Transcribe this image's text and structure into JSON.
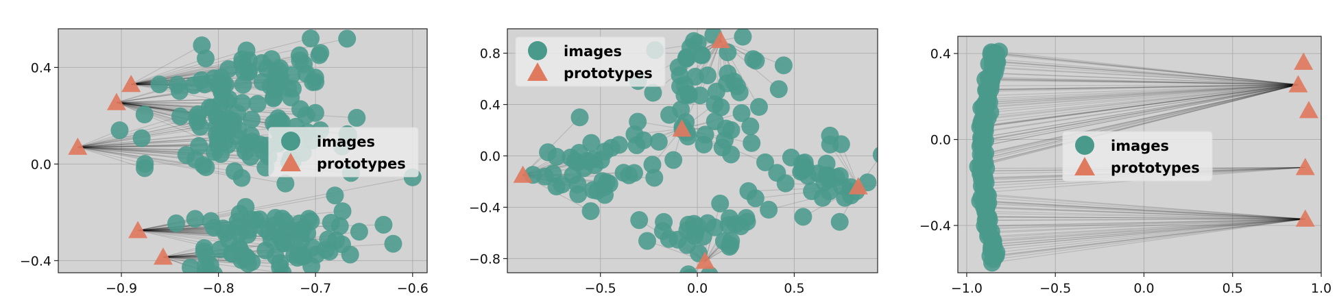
{
  "colors": {
    "background": "#d3d3d3",
    "grid": "#b0b0b0",
    "images": "#4a9a8c",
    "prototypes": "#e07a5f",
    "edges": "#000000"
  },
  "legend": {
    "images_label": "images",
    "prototypes_label": "prototypes"
  },
  "chart_data": [
    {
      "type": "scatter",
      "title": "",
      "xlabel": "",
      "ylabel": "",
      "xlim": [
        -0.965,
        -0.585
      ],
      "ylim": [
        -0.45,
        0.56
      ],
      "xticks": [
        -0.9,
        -0.8,
        -0.7,
        -0.6
      ],
      "xtick_labels": [
        "−0.9",
        "−0.8",
        "−0.7",
        "−0.6"
      ],
      "yticks": [
        -0.4,
        0.0,
        0.4
      ],
      "ytick_labels": [
        "−0.4",
        "0.0",
        "0.4"
      ],
      "grid": true,
      "legend_position": "center-right",
      "seed": 11,
      "prototypes": [
        [
          -0.89,
          0.33
        ],
        [
          -0.905,
          0.255
        ],
        [
          -0.945,
          0.07
        ],
        [
          -0.883,
          -0.275
        ],
        [
          -0.857,
          -0.385
        ]
      ],
      "clusters": [
        {
          "center": [
            -0.76,
            0.38
          ],
          "spread": [
            0.04,
            0.07
          ],
          "n": 45,
          "proto": 0
        },
        {
          "center": [
            -0.765,
            0.2
          ],
          "spread": [
            0.045,
            0.08
          ],
          "n": 45,
          "proto": 1
        },
        {
          "center": [
            -0.775,
            0.06
          ],
          "spread": [
            0.045,
            0.09
          ],
          "n": 45,
          "proto": 2
        },
        {
          "center": [
            -0.745,
            -0.27
          ],
          "spread": [
            0.055,
            0.05
          ],
          "n": 45,
          "proto": 3
        },
        {
          "center": [
            -0.75,
            -0.37
          ],
          "spread": [
            0.05,
            0.035
          ],
          "n": 35,
          "proto": 4
        }
      ],
      "extra_points": [
        [
          -0.705,
          0.52
        ],
        [
          -0.695,
          0.46
        ],
        [
          -0.7,
          0.34
        ],
        [
          -0.695,
          0.14
        ],
        [
          -0.68,
          -0.13
        ],
        [
          -0.62,
          -0.33
        ],
        [
          -0.6,
          -0.055
        ],
        [
          -0.655,
          -0.28
        ]
      ],
      "series": [
        {
          "name": "images"
        },
        {
          "name": "prototypes"
        }
      ]
    },
    {
      "type": "scatter",
      "title": "",
      "xlabel": "",
      "ylabel": "",
      "xlim": [
        -0.98,
        0.93
      ],
      "ylim": [
        -0.91,
        0.99
      ],
      "xticks": [
        -0.5,
        0.0,
        0.5
      ],
      "xtick_labels": [
        "−0.5",
        "0.0",
        "0.5"
      ],
      "yticks": [
        -0.8,
        -0.4,
        0.0,
        0.4,
        0.8
      ],
      "ytick_labels": [
        "−0.8",
        "−0.4",
        "0.0",
        "0.4",
        "0.8"
      ],
      "grid": true,
      "legend_position": "upper-left",
      "seed": 23,
      "prototypes": [
        [
          0.12,
          0.9
        ],
        [
          -0.08,
          0.21
        ],
        [
          -0.9,
          -0.15
        ],
        [
          0.83,
          -0.24
        ],
        [
          0.04,
          -0.82
        ]
      ],
      "clusters": [
        {
          "center": [
            0.1,
            0.62
          ],
          "spread": [
            0.15,
            0.14
          ],
          "n": 35,
          "proto": 0
        },
        {
          "center": [
            -0.1,
            0.18
          ],
          "spread": [
            0.18,
            0.12
          ],
          "n": 25,
          "proto": 1
        },
        {
          "center": [
            -0.6,
            -0.1
          ],
          "spread": [
            0.15,
            0.13
          ],
          "n": 35,
          "proto": 2
        },
        {
          "center": [
            0.6,
            -0.2
          ],
          "spread": [
            0.16,
            0.14
          ],
          "n": 35,
          "proto": 3
        },
        {
          "center": [
            0.05,
            -0.6
          ],
          "spread": [
            0.15,
            0.13
          ],
          "n": 30,
          "proto": 4
        }
      ],
      "extra_points": [
        [
          0.42,
          0.52
        ],
        [
          0.28,
          0.1
        ],
        [
          0.35,
          -0.05
        ],
        [
          -0.55,
          -0.43
        ],
        [
          -0.3,
          -0.5
        ],
        [
          0.3,
          -0.33
        ]
      ],
      "series": [
        {
          "name": "images"
        },
        {
          "name": "prototypes"
        }
      ]
    },
    {
      "type": "scatter",
      "title": "",
      "xlabel": "",
      "ylabel": "",
      "xlim": [
        -1.05,
        1.0
      ],
      "ylim": [
        -0.62,
        0.48
      ],
      "xticks": [
        -1.0,
        -0.5,
        0.0,
        0.5,
        1.0
      ],
      "xtick_labels": [
        "−1.0",
        "−0.5",
        "0.0",
        "0.5",
        "1.0"
      ],
      "yticks": [
        -0.4,
        0.0,
        0.4
      ],
      "ytick_labels": [
        "−0.4",
        "0.0",
        "0.4"
      ],
      "grid": true,
      "legend_position": "center",
      "seed": 37,
      "prototypes": [
        [
          0.9,
          0.36
        ],
        [
          0.87,
          0.255
        ],
        [
          0.93,
          0.135
        ],
        [
          0.91,
          -0.13
        ],
        [
          0.91,
          -0.37
        ]
      ],
      "arc": {
        "x_center": -0.87,
        "x_amp": 0.07,
        "y_top": 0.42,
        "y_bottom": -0.57,
        "n": 120
      },
      "series": [
        {
          "name": "images"
        },
        {
          "name": "prototypes"
        }
      ]
    }
  ]
}
